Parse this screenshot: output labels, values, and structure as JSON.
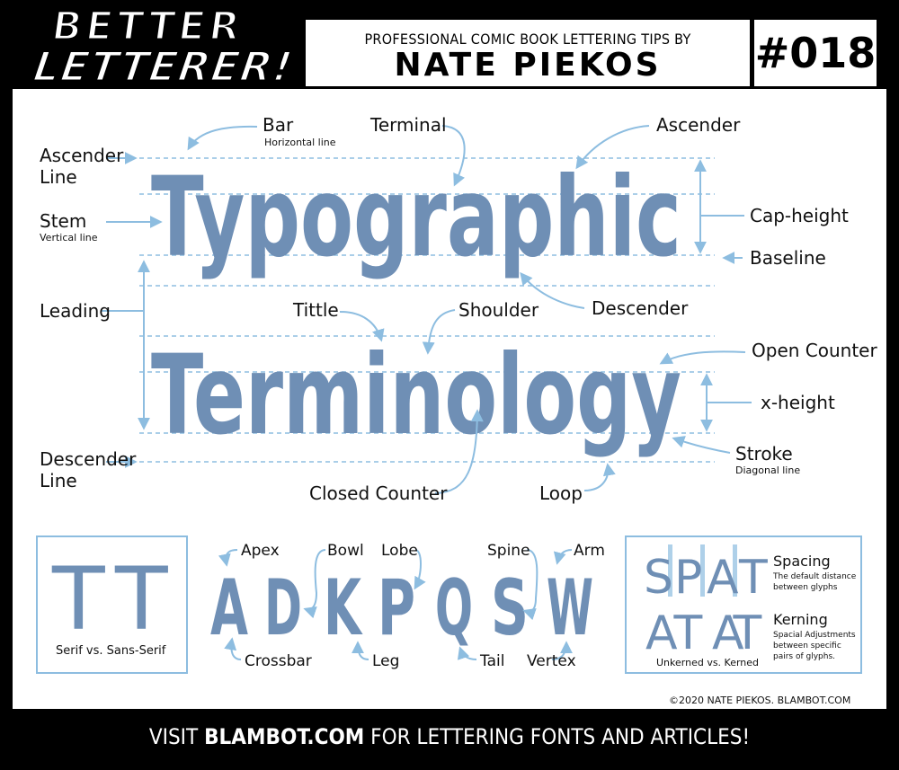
{
  "logo": {
    "line1": "BETTER",
    "line2": "LETTERER!"
  },
  "header": {
    "subtitle": "PROFESSIONAL COMIC BOOK LETTERING TIPS BY",
    "author": "NATE PIEKOS",
    "issue": "#018"
  },
  "main_words": {
    "word1": "Typographic",
    "word2": "Terminology"
  },
  "labels": {
    "ascender_line_1": "Ascender",
    "ascender_line_2": "Line",
    "stem": "Stem",
    "stem_sub": "Vertical line",
    "leading": "Leading",
    "descender_line_1": "Descender",
    "descender_line_2": "Line",
    "bar": "Bar",
    "bar_sub": "Horizontal line",
    "terminal": "Terminal",
    "ascender": "Ascender",
    "cap_height": "Cap-height",
    "baseline": "Baseline",
    "descender": "Descender",
    "tittle": "Tittle",
    "shoulder": "Shoulder",
    "open_counter": "Open Counter",
    "x_height": "x-height",
    "stroke": "Stroke",
    "stroke_sub": "Diagonal line",
    "closed_counter": "Closed Counter",
    "loop": "Loop"
  },
  "serif_box": {
    "caption": "Serif vs. Sans-Serif",
    "glyph_serif": "T",
    "glyph_sans": "T"
  },
  "anatomy": {
    "letters": [
      "A",
      "D",
      "K",
      "P",
      "Q",
      "S",
      "W"
    ],
    "apex": "Apex",
    "bowl": "Bowl",
    "lobe": "Lobe",
    "spine": "Spine",
    "arm": "Arm",
    "crossbar": "Crossbar",
    "leg": "Leg",
    "tail": "Tail",
    "vertex": "Vertex"
  },
  "spacing_box": {
    "spat": [
      "S",
      "P",
      "A",
      "T"
    ],
    "at_unkerned": "AT",
    "at_kerned": "AT",
    "spacing_title": "Spacing",
    "spacing_desc_1": "The default distance",
    "spacing_desc_2": "between glyphs",
    "kerning_title": "Kerning",
    "kerning_desc_1": "Spacial Adjustments",
    "kerning_desc_2": "between specific",
    "kerning_desc_3": "pairs of glyphs.",
    "caption": "Unkerned vs. Kerned"
  },
  "copyright": "©2020 NATE PIEKOS. BLAMBOT.COM",
  "footer": {
    "pre": "VISIT ",
    "site": "BLAMBOT.COM",
    "post": " FOR LETTERING FONTS AND ARTICLES!"
  },
  "colors": {
    "glyph_blue": "#6f8fb5",
    "guide_blue": "#8dbde0",
    "label": "#111111",
    "frame": "#000000"
  }
}
